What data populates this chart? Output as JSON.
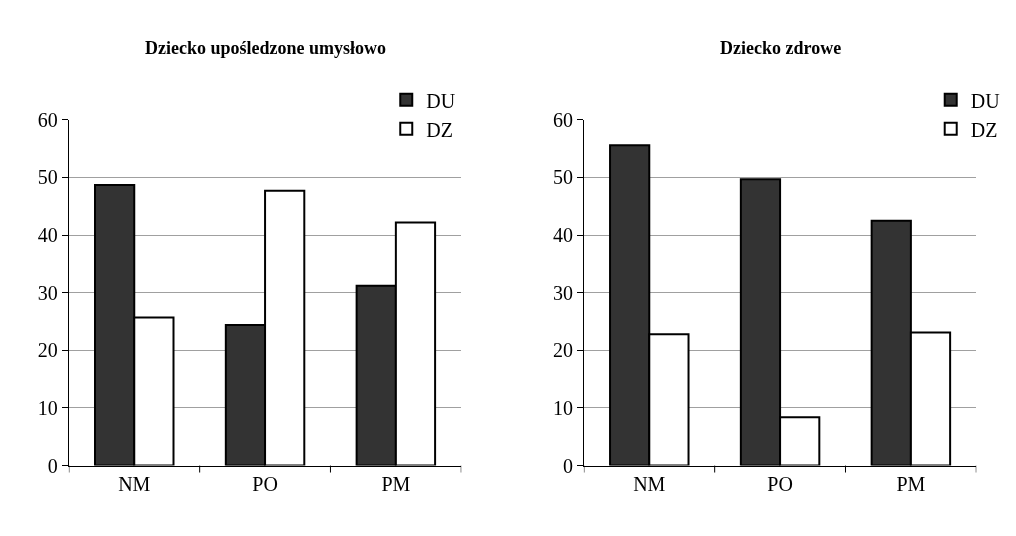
{
  "chart_data": [
    {
      "type": "bar",
      "title": "Dziecko upośledzone umysłowo",
      "categories": [
        "NM",
        "PO",
        "PM"
      ],
      "series": [
        {
          "name": "DU",
          "color": "#333333",
          "values": [
            48.7,
            24.4,
            31.2
          ]
        },
        {
          "name": "DZ",
          "color": "#ffffff",
          "values": [
            25.7,
            47.7,
            42.2
          ]
        }
      ],
      "ylim": [
        0,
        60
      ],
      "yticks": [
        0,
        10,
        20,
        30,
        40,
        50,
        60
      ],
      "grid": "y",
      "legend": "top right"
    },
    {
      "type": "bar",
      "title": "Dziecko zdrowe",
      "categories": [
        "NM",
        "PO",
        "PM"
      ],
      "series": [
        {
          "name": "DU",
          "color": "#333333",
          "values": [
            55.6,
            49.7,
            42.5
          ]
        },
        {
          "name": "DZ",
          "color": "#ffffff",
          "values": [
            22.8,
            8.4,
            23.1
          ]
        }
      ],
      "ylim": [
        0,
        60
      ],
      "yticks": [
        0,
        10,
        20,
        30,
        40,
        50,
        60
      ],
      "grid": "y",
      "legend": "top right"
    }
  ]
}
